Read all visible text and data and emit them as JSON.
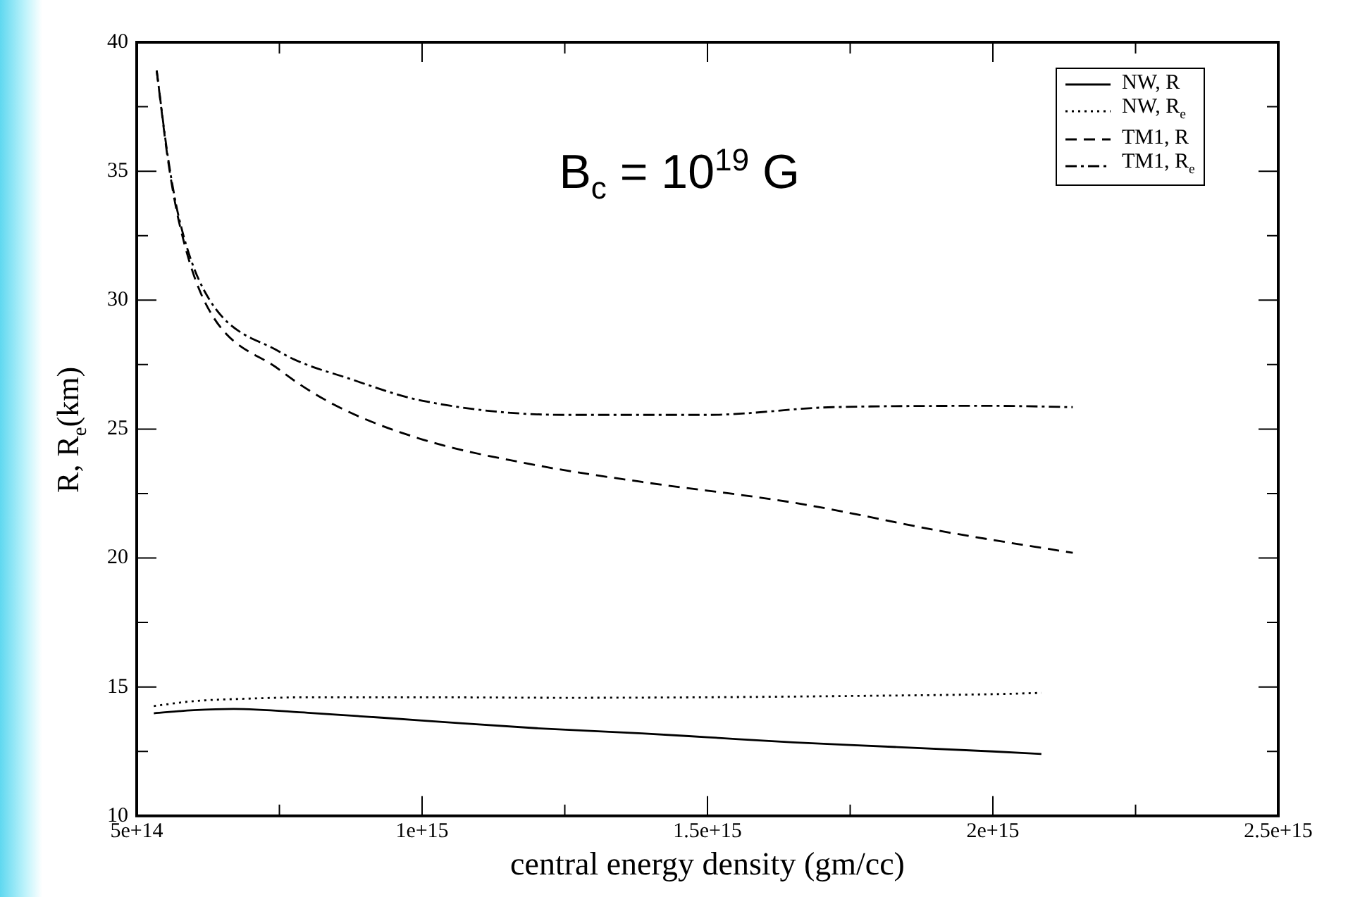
{
  "chart_data": {
    "type": "line",
    "xlabel": "central energy density (gm/cc)",
    "ylabel": "R, R$_{e}$(km)",
    "annotations": [
      "B$_{c}$ = 10$^{19}$ G"
    ],
    "xlim": [
      500000000000000.0,
      2500000000000000.0
    ],
    "ylim": [
      10,
      40
    ],
    "xticks": [
      {
        "value": 500000000000000.0,
        "label": "5e+14"
      },
      {
        "value": 750000000000000.0,
        "label": null
      },
      {
        "value": 1000000000000000.0,
        "label": "1e+15"
      },
      {
        "value": 1250000000000000.0,
        "label": null
      },
      {
        "value": 1500000000000000.0,
        "label": "1.5e+15"
      },
      {
        "value": 1750000000000000.0,
        "label": null
      },
      {
        "value": 2000000000000000.0,
        "label": "2e+15"
      },
      {
        "value": 2250000000000000.0,
        "label": null
      },
      {
        "value": 2500000000000000.0,
        "label": "2.5e+15"
      }
    ],
    "yticks": [
      10,
      {
        "value": 12.5,
        "label": null
      },
      15,
      {
        "value": 17.5,
        "label": null
      },
      20,
      {
        "value": 22.5,
        "label": null
      },
      25,
      {
        "value": 27.5,
        "label": null
      },
      30,
      {
        "value": 32.5,
        "label": null
      },
      35,
      {
        "value": 37.5,
        "label": null
      },
      40
    ],
    "grid": false,
    "legend": "top right",
    "marker": "none",
    "series": [
      {
        "name": "NW, R",
        "color": "#000000",
        "line_style": "solid",
        "x": [
          530000000000000.0,
          600000000000000.0,
          670000000000000.0,
          800000000000000.0,
          1000000000000000.0,
          1200000000000000.0,
          1385000000000000.0,
          1500000000000000.0,
          1650000000000000.0,
          1750000000000000.0,
          2000000000000000.0,
          2085000000000000.0
        ],
        "values": [
          13.98,
          14.1,
          14.15,
          14.0,
          13.7,
          13.4,
          13.2,
          13.05,
          12.85,
          12.75,
          12.5,
          12.4
        ]
      },
      {
        "name": "NW, R$_{e}$",
        "color": "#000000",
        "line_style": "dotted",
        "x": [
          530000000000000.0,
          600000000000000.0,
          700000000000000.0,
          800000000000000.0,
          1000000000000000.0,
          1250000000000000.0,
          1500000000000000.0,
          1750000000000000.0,
          2000000000000000.0,
          2085000000000000.0
        ],
        "values": [
          14.26,
          14.45,
          14.55,
          14.6,
          14.6,
          14.58,
          14.6,
          14.65,
          14.72,
          14.77
        ]
      },
      {
        "name": "TM1, R",
        "color": "#000000",
        "line_style": "dashed",
        "x": [
          535000000000000.0,
          555000000000000.0,
          575000000000000.0,
          620000000000000.0,
          750000000000000.0,
          850000000000000.0,
          1000000000000000.0,
          1200000000000000.0,
          1385000000000000.0,
          1650000000000000.0,
          1920000000000000.0,
          2140000000000000.0
        ],
        "values": [
          38.9,
          35.4,
          32.95,
          29.9,
          27.3,
          25.9,
          24.6,
          23.6,
          22.95,
          22.15,
          21.0,
          20.2
        ]
      },
      {
        "name": "TM1, R$_{e}$",
        "color": "#000000",
        "line_style": "dashdot",
        "x": [
          535000000000000.0,
          555000000000000.0,
          575000000000000.0,
          620000000000000.0,
          750000000000000.0,
          880000000000000.0,
          1000000000000000.0,
          1250000000000000.0,
          1500000000000000.0,
          1720000000000000.0,
          2000000000000000.0,
          2140000000000000.0
        ],
        "values": [
          38.9,
          35.5,
          33.1,
          30.3,
          28.0,
          26.9,
          26.1,
          25.55,
          25.55,
          25.85,
          25.9,
          25.85
        ]
      }
    ]
  }
}
